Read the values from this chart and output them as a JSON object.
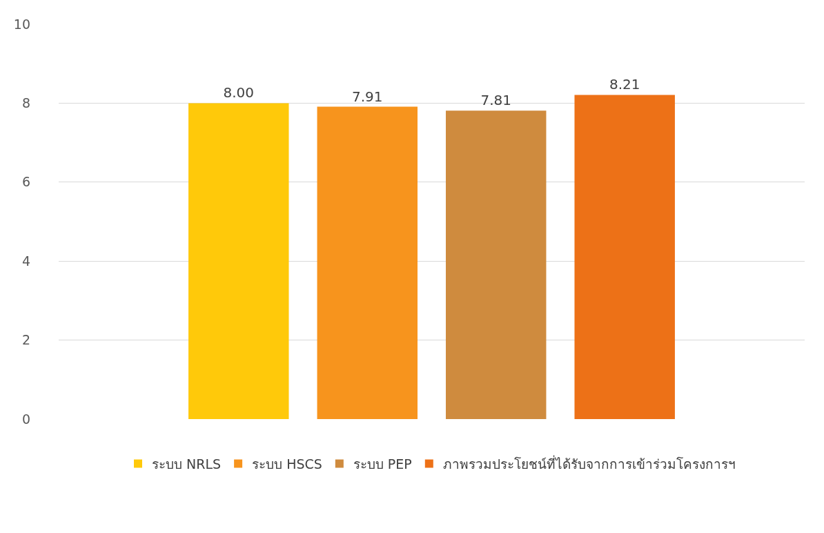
{
  "chart_data": {
    "type": "bar",
    "categories": [
      null
    ],
    "series": [
      {
        "name": "ระบบ NRLS",
        "color": "#ffc90a",
        "values": [
          8.0
        ],
        "value_labels": [
          "8.00"
        ]
      },
      {
        "name": "ระบบ HSCS",
        "color": "#f7941d",
        "values": [
          7.91
        ],
        "value_labels": [
          "7.91"
        ]
      },
      {
        "name": "ระบบ PEP",
        "color": "#cf8b3e",
        "values": [
          7.81
        ],
        "value_labels": [
          "7.81"
        ]
      },
      {
        "name": "ภาพรวมประโยชน์ที่ได้รับจากการเข้าร่วมโครงการฯ",
        "color": "#ed7117",
        "values": [
          8.21
        ],
        "value_labels": [
          "8.21"
        ]
      }
    ],
    "ylim": [
      0,
      10
    ],
    "yticks": [
      0,
      2,
      4,
      6,
      8,
      10
    ],
    "grid": "y",
    "legend": "bottom",
    "tick_labels": "y"
  }
}
